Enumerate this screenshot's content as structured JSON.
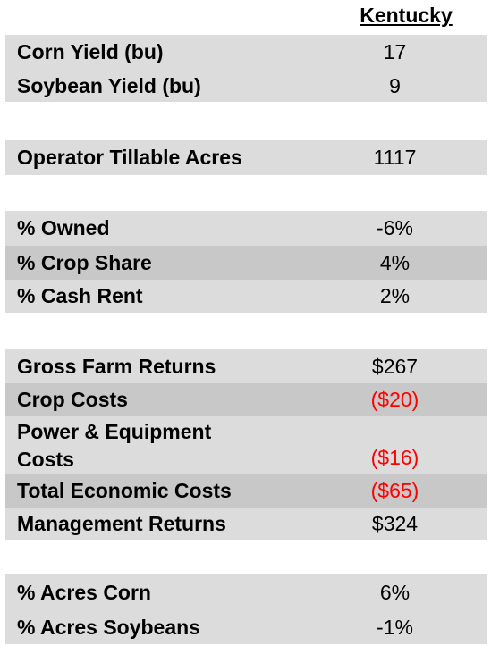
{
  "header": {
    "state": "Kentucky"
  },
  "rows": [
    {
      "label": "Corn Yield (bu)",
      "value": "17"
    },
    {
      "label": "Soybean Yield (bu)",
      "value": "9"
    },
    {
      "label": "Operator Tillable Acres",
      "value": "1117"
    },
    {
      "label": "% Owned",
      "value": "-6%"
    },
    {
      "label": "% Crop Share",
      "value": "4%"
    },
    {
      "label": "% Cash Rent",
      "value": "2%"
    },
    {
      "label": "Gross Farm Returns",
      "value": "$267"
    },
    {
      "label": "Crop Costs",
      "value": "($20)"
    },
    {
      "label_line1": "Power & Equipment",
      "label_line2": "Costs",
      "value": "($16)"
    },
    {
      "label": "Total Economic Costs",
      "value": "($65)"
    },
    {
      "label": "Management Returns",
      "value": "$324"
    },
    {
      "label": "% Acres Corn",
      "value": "6%"
    },
    {
      "label": "% Acres Soybeans",
      "value": "-1%"
    }
  ],
  "colors": {
    "row_background": "#dcdcdd",
    "row_background_dark": "#c8c8c8",
    "negative_value": "#ff0000"
  }
}
